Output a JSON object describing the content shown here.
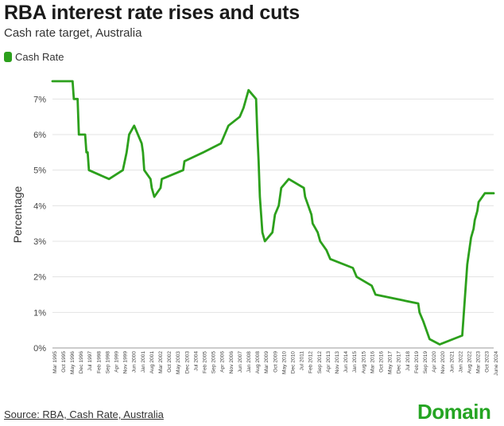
{
  "header": {
    "title": "RBA interest rate rises and cuts",
    "subtitle": "Cash rate target, Australia"
  },
  "footer": {
    "source": "Source: RBA, Cash Rate, Australia",
    "brand": "Domain"
  },
  "colors": {
    "line": "#2ca01c",
    "brand": "#25a523",
    "grid": "#e3e3e3"
  },
  "chart_data": {
    "type": "line",
    "title": "RBA interest rate rises and cuts",
    "subtitle": "Cash rate target, Australia",
    "ylabel": "Percentage",
    "xlabel": "",
    "ylim": [
      0,
      7.5
    ],
    "yticks": [
      "0%",
      "1%",
      "2%",
      "3%",
      "4%",
      "5%",
      "6%",
      "7%"
    ],
    "grid": true,
    "legend_position": "top-left",
    "xticks": [
      "Mar 1995",
      "Oct 1995",
      "May 1996",
      "Dec 1996",
      "Jul 1997",
      "Feb 1998",
      "Sep 1998",
      "Apr 1999",
      "Nov 1999",
      "Jun 2000",
      "Jan 2001",
      "Aug 2001",
      "Mar 2002",
      "Oct 2002",
      "May 2003",
      "Dec 2003",
      "Jul 2004",
      "Feb 2005",
      "Sep 2005",
      "Apr 2006",
      "Nov 2006",
      "Jun 2007",
      "Jan 2008",
      "Aug 2008",
      "Mar 2009",
      "Oct 2009",
      "May 2010",
      "Dec 2010",
      "Jul 2011",
      "Feb 2012",
      "Sep 2012",
      "Apr 2013",
      "Nov 2013",
      "Jun 2014",
      "Jan 2015",
      "Aug 2015",
      "Mar 2016",
      "Oct 2016",
      "May 2017",
      "Dec 2017",
      "Jul 2018",
      "Feb 2019",
      "Sep 2019",
      "Apr 2020",
      "Nov 2020",
      "Jun 2021",
      "Jan 2022",
      "Aug 2022",
      "Mar 2023",
      "Oct 2023",
      "June 2024"
    ],
    "series": [
      {
        "name": "Cash Rate",
        "x": [
          "1995-03",
          "1996-07",
          "1996-08",
          "1996-11",
          "1996-12",
          "1997-05",
          "1997-06",
          "1997-07",
          "1997-08",
          "1998-12",
          "1999-11",
          "2000-02",
          "2000-03",
          "2000-04",
          "2000-08",
          "2001-02",
          "2001-03",
          "2001-04",
          "2001-09",
          "2001-10",
          "2001-12",
          "2002-05",
          "2002-06",
          "2003-11",
          "2003-12",
          "2005-03",
          "2006-05",
          "2006-08",
          "2006-11",
          "2007-08",
          "2007-11",
          "2008-03",
          "2008-09",
          "2008-10",
          "2008-11",
          "2008-12",
          "2009-02",
          "2009-04",
          "2009-10",
          "2009-11",
          "2009-12",
          "2010-03",
          "2010-04",
          "2010-05",
          "2010-11",
          "2011-11",
          "2011-12",
          "2012-05",
          "2012-06",
          "2012-10",
          "2012-12",
          "2013-05",
          "2013-08",
          "2015-02",
          "2015-05",
          "2016-05",
          "2016-08",
          "2019-06",
          "2019-07",
          "2019-10",
          "2020-03",
          "2020-11",
          "2022-05",
          "2022-06",
          "2022-07",
          "2022-08",
          "2022-09",
          "2022-10",
          "2022-11",
          "2022-12",
          "2023-02",
          "2023-03",
          "2023-05",
          "2023-06",
          "2023-11",
          "2024-06"
        ],
        "values": [
          7.5,
          7.5,
          7.0,
          7.0,
          6.0,
          6.0,
          5.5,
          5.5,
          5.0,
          4.75,
          5.0,
          5.5,
          5.75,
          6.0,
          6.25,
          5.75,
          5.5,
          5.0,
          4.75,
          4.5,
          4.25,
          4.5,
          4.75,
          5.0,
          5.25,
          5.5,
          5.75,
          6.0,
          6.25,
          6.5,
          6.75,
          7.25,
          7.0,
          6.0,
          5.25,
          4.25,
          3.25,
          3.0,
          3.25,
          3.5,
          3.75,
          4.0,
          4.25,
          4.5,
          4.75,
          4.5,
          4.25,
          3.75,
          3.5,
          3.25,
          3.0,
          2.75,
          2.5,
          2.25,
          2.0,
          1.75,
          1.5,
          1.25,
          1.0,
          0.75,
          0.25,
          0.1,
          0.35,
          0.85,
          1.35,
          1.85,
          2.35,
          2.6,
          2.85,
          3.1,
          3.35,
          3.6,
          3.85,
          4.1,
          4.35,
          4.35
        ]
      }
    ]
  }
}
